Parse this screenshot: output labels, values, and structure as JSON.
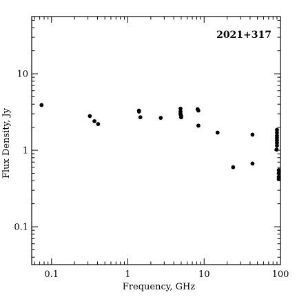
{
  "chart_data": {
    "type": "scatter",
    "title": "2021+317",
    "xlabel": "Frequency, GHz",
    "ylabel": "Flux Density, Jy",
    "xscale": "log",
    "yscale": "log",
    "xlim": [
      0.055,
      100
    ],
    "ylim": [
      0.032,
      56
    ],
    "grid": false,
    "x_ticks": [
      {
        "value": 0.1,
        "label": "0.1"
      },
      {
        "value": 1,
        "label": "1"
      },
      {
        "value": 10,
        "label": "10"
      },
      {
        "value": 100,
        "label": "100"
      }
    ],
    "y_ticks": [
      {
        "value": 0.1,
        "label": "0.1"
      },
      {
        "value": 1,
        "label": "1"
      },
      {
        "value": 10,
        "label": "10"
      }
    ],
    "series": [
      {
        "points": [
          [
            0.074,
            3.9
          ],
          [
            0.318,
            2.8
          ],
          [
            0.365,
            2.4
          ],
          [
            0.408,
            2.2
          ],
          [
            1.4,
            3.3
          ],
          [
            1.4,
            3.2
          ],
          [
            1.46,
            2.7
          ],
          [
            2.7,
            2.65
          ],
          [
            4.9,
            3.5
          ],
          [
            4.9,
            3.2
          ],
          [
            4.9,
            3.0
          ],
          [
            4.9,
            2.95
          ],
          [
            5.0,
            2.8
          ],
          [
            5.0,
            2.7
          ],
          [
            8.2,
            3.45
          ],
          [
            8.4,
            3.3
          ],
          [
            8.4,
            2.1
          ],
          [
            15.0,
            1.7
          ],
          [
            24.0,
            0.6
          ],
          [
            43.0,
            1.6
          ],
          [
            43.0,
            0.67
          ],
          [
            90.0,
            1.85
          ],
          [
            90.0,
            1.7
          ],
          [
            90.0,
            1.55
          ],
          [
            90.0,
            1.45
          ],
          [
            90.0,
            1.35
          ],
          [
            90.0,
            1.25
          ],
          [
            90.0,
            1.15
          ],
          [
            89.0,
            1.02
          ],
          [
            95.0,
            0.55
          ],
          [
            95.0,
            0.5
          ],
          [
            95.0,
            0.45
          ],
          [
            95.0,
            0.42
          ]
        ]
      }
    ]
  }
}
